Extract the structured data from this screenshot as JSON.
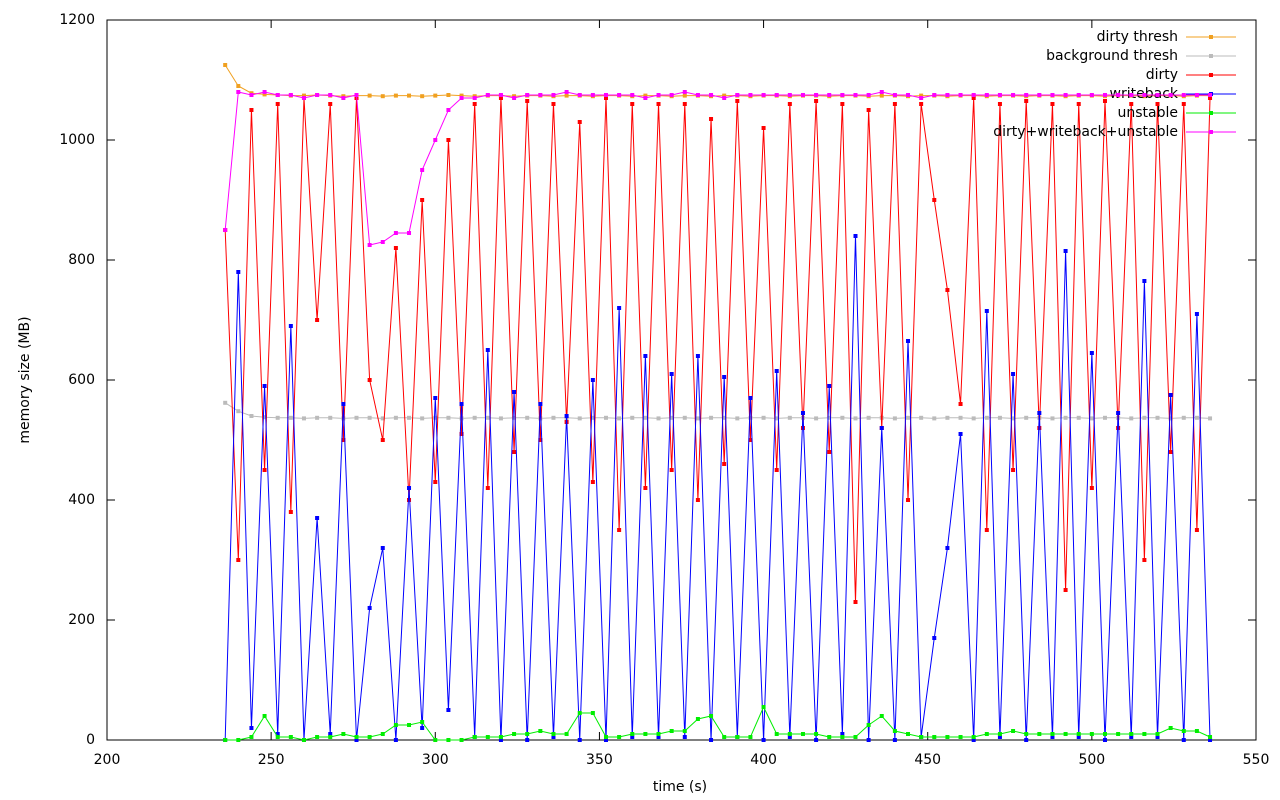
{
  "chart_data": {
    "type": "line",
    "x_label": "time (s)",
    "y_label": "memory size (MB)",
    "xlim": [
      200,
      550
    ],
    "xticks": [
      200,
      250,
      300,
      350,
      400,
      450,
      500,
      550
    ],
    "ylim": [
      0,
      1200
    ],
    "yticks": [
      0,
      200,
      400,
      600,
      800,
      1000,
      1200
    ],
    "legend": "top-right",
    "x": [
      236,
      240,
      244,
      248,
      252,
      256,
      260,
      264,
      268,
      272,
      276,
      280,
      284,
      288,
      292,
      296,
      300,
      304,
      308,
      312,
      316,
      320,
      324,
      328,
      332,
      336,
      340,
      344,
      348,
      352,
      356,
      360,
      364,
      368,
      372,
      376,
      380,
      384,
      388,
      392,
      396,
      400,
      404,
      408,
      412,
      416,
      420,
      424,
      428,
      432,
      436,
      440,
      444,
      448,
      452,
      456,
      460,
      464,
      468,
      472,
      476,
      480,
      484,
      488,
      492,
      496,
      500,
      504,
      508,
      512,
      516,
      520,
      524,
      528,
      532,
      536
    ],
    "series": [
      {
        "name": "dirty thresh",
        "color": "#f0a020",
        "values": [
          1125,
          1090,
          1078,
          1076,
          1075,
          1074,
          1074,
          1075,
          1074,
          1073,
          1074,
          1074,
          1073,
          1074,
          1074,
          1073,
          1074,
          1075,
          1074,
          1073,
          1074,
          1074,
          1073,
          1074,
          1074,
          1073,
          1074,
          1074,
          1073,
          1074,
          1074,
          1073,
          1074,
          1074,
          1073,
          1074,
          1074,
          1073,
          1074,
          1074,
          1073,
          1074,
          1074,
          1073,
          1074,
          1074,
          1073,
          1074,
          1074,
          1073,
          1074,
          1074,
          1073,
          1074,
          1074,
          1073,
          1074,
          1074,
          1073,
          1074,
          1074,
          1073,
          1074,
          1074,
          1073,
          1074,
          1074,
          1073,
          1074,
          1074,
          1073,
          1074,
          1074,
          1073,
          1074,
          1074
        ]
      },
      {
        "name": "background thresh",
        "color": "#bbbbbb",
        "values": [
          562,
          548,
          540,
          538,
          537,
          537,
          536,
          537,
          537,
          536,
          537,
          537,
          536,
          537,
          537,
          536,
          537,
          537,
          536,
          537,
          537,
          536,
          537,
          537,
          536,
          537,
          537,
          536,
          537,
          537,
          536,
          537,
          537,
          536,
          537,
          537,
          536,
          537,
          537,
          536,
          537,
          537,
          536,
          537,
          537,
          536,
          537,
          537,
          536,
          537,
          537,
          536,
          537,
          537,
          536,
          537,
          537,
          536,
          537,
          537,
          536,
          537,
          537,
          536,
          537,
          537,
          536,
          537,
          537,
          536,
          537,
          537,
          536,
          537,
          537,
          536
        ]
      },
      {
        "name": "dirty",
        "color": "#ff0000",
        "values": [
          850,
          300,
          1050,
          450,
          1060,
          380,
          1070,
          700,
          1060,
          500,
          1070,
          600,
          500,
          820,
          400,
          900,
          430,
          1000,
          510,
          1060,
          420,
          1070,
          480,
          1065,
          500,
          1060,
          530,
          1030,
          430,
          1070,
          350,
          1060,
          420,
          1060,
          450,
          1060,
          400,
          1035,
          460,
          1065,
          500,
          1020,
          450,
          1060,
          520,
          1065,
          480,
          1060,
          230,
          1050,
          520,
          1060,
          400,
          1060,
          900,
          750,
          560,
          1070,
          350,
          1060,
          450,
          1065,
          520,
          1060,
          250,
          1060,
          420,
          1065,
          520,
          1060,
          300,
          1060,
          480,
          1060,
          350,
          1070
        ]
      },
      {
        "name": "writeback",
        "color": "#0000ff",
        "values": [
          0,
          780,
          20,
          590,
          10,
          690,
          0,
          370,
          10,
          560,
          0,
          220,
          320,
          0,
          420,
          20,
          570,
          50,
          560,
          5,
          650,
          0,
          580,
          0,
          560,
          5,
          540,
          0,
          600,
          0,
          720,
          5,
          640,
          5,
          610,
          5,
          640,
          0,
          605,
          5,
          570,
          0,
          615,
          5,
          545,
          0,
          590,
          10,
          840,
          0,
          520,
          0,
          665,
          5,
          170,
          320,
          510,
          0,
          715,
          5,
          610,
          0,
          545,
          5,
          815,
          5,
          645,
          0,
          545,
          5,
          765,
          5,
          575,
          0,
          710,
          0
        ]
      },
      {
        "name": "unstable",
        "color": "#00ee00",
        "values": [
          0,
          0,
          5,
          40,
          5,
          5,
          0,
          5,
          5,
          10,
          5,
          5,
          10,
          25,
          25,
          30,
          0,
          0,
          0,
          5,
          5,
          5,
          10,
          10,
          15,
          10,
          10,
          45,
          45,
          5,
          5,
          10,
          10,
          10,
          15,
          15,
          35,
          40,
          5,
          5,
          5,
          55,
          10,
          10,
          10,
          10,
          5,
          5,
          5,
          25,
          40,
          15,
          10,
          5,
          5,
          5,
          5,
          5,
          10,
          10,
          15,
          10,
          10,
          10,
          10,
          10,
          10,
          10,
          10,
          10,
          10,
          10,
          20,
          15,
          15,
          5
        ]
      },
      {
        "name": "dirty+writeback+unstable",
        "color": "#ff00ff",
        "values": [
          850,
          1080,
          1075,
          1080,
          1075,
          1075,
          1070,
          1075,
          1075,
          1070,
          1075,
          825,
          830,
          845,
          845,
          950,
          1000,
          1050,
          1070,
          1070,
          1075,
          1075,
          1070,
          1075,
          1075,
          1075,
          1080,
          1075,
          1075,
          1075,
          1075,
          1075,
          1070,
          1075,
          1075,
          1080,
          1075,
          1075,
          1070,
          1075,
          1075,
          1075,
          1075,
          1075,
          1075,
          1075,
          1075,
          1075,
          1075,
          1075,
          1080,
          1075,
          1075,
          1070,
          1075,
          1075,
          1075,
          1075,
          1075,
          1075,
          1075,
          1075,
          1075,
          1075,
          1075,
          1075,
          1075,
          1075,
          1075,
          1075,
          1075,
          1075,
          1075,
          1075,
          1075,
          1075
        ]
      }
    ]
  }
}
